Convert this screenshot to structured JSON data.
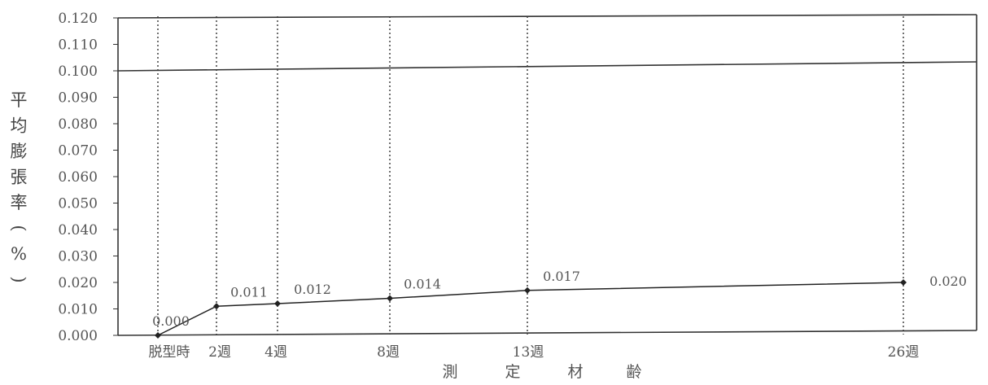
{
  "chart_data": {
    "type": "line",
    "title": "",
    "ylabel": "平均膨張率(%)",
    "xlabel": "測 定 材 齢",
    "ylim": [
      0,
      0.12
    ],
    "yticks": [
      "0.000",
      "0.010",
      "0.020",
      "0.030",
      "0.040",
      "0.050",
      "0.060",
      "0.070",
      "0.080",
      "0.090",
      "0.100",
      "0.110",
      "0.120"
    ],
    "categories": [
      "脱型時",
      "2週",
      "4週",
      "8週",
      "13週",
      "26週"
    ],
    "x_weeks": [
      0,
      2,
      4,
      8,
      13,
      26
    ],
    "values": [
      0.0,
      0.011,
      0.012,
      0.014,
      0.017,
      0.02
    ],
    "data_labels": [
      "0.000",
      "0.011",
      "0.012",
      "0.014",
      "0.017",
      "0.020"
    ],
    "threshold": 0.1,
    "grid": false,
    "legend": "none"
  },
  "colors": {
    "line": "#222222",
    "axis": "#333333",
    "text": "#555555"
  }
}
